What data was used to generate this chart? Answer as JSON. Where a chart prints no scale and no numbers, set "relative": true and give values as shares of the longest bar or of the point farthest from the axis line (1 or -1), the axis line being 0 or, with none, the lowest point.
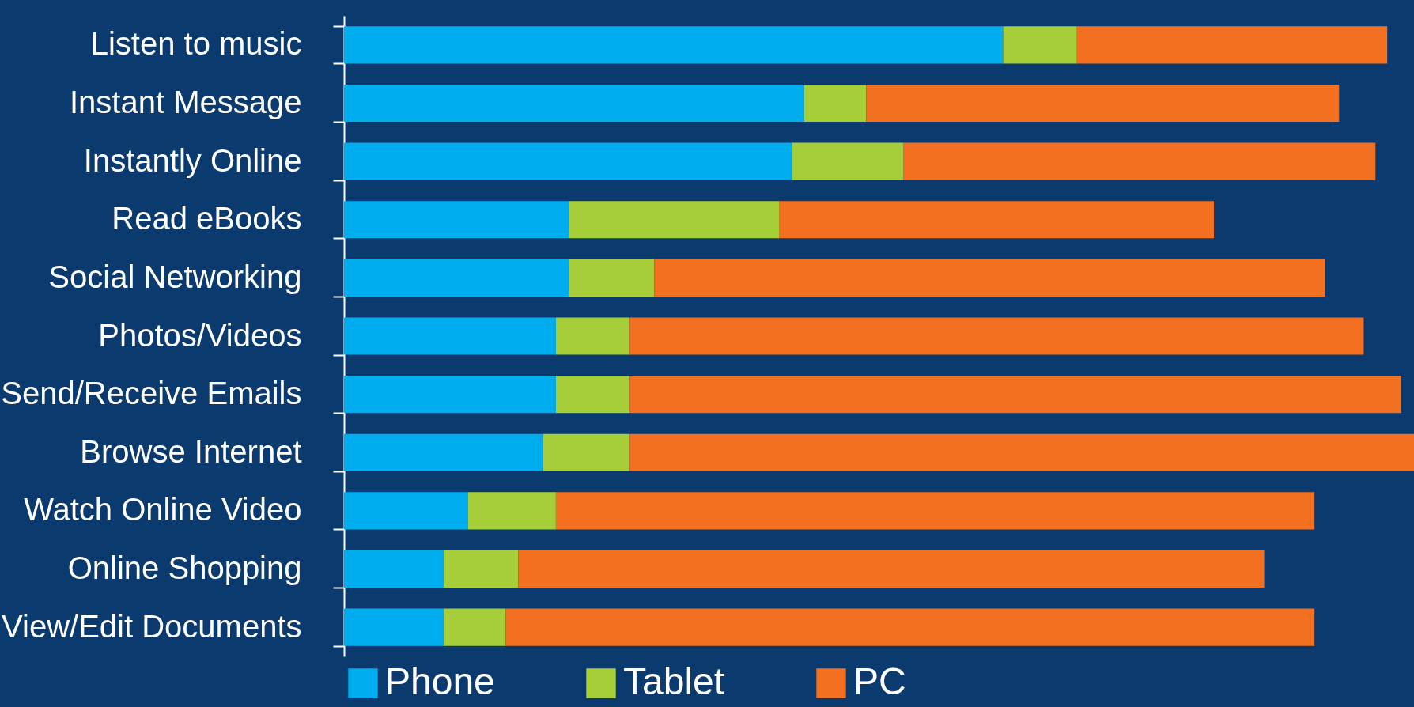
{
  "chart_data": {
    "type": "bar",
    "orientation": "horizontal",
    "stacked": true,
    "relative": true,
    "legend": "bottom",
    "categories": [
      "Listen to music",
      "Instant Message",
      "Instantly Online",
      "Read eBooks",
      "Social Networking",
      "Photos/Videos",
      "Send/Receive Emails",
      "Browse Internet",
      "Watch Online Video",
      "Online Shopping",
      "View/Edit Documents"
    ],
    "series": [
      {
        "name": "Phone",
        "color": "#00aeef",
        "values": [
          0.616,
          0.43,
          0.419,
          0.21,
          0.21,
          0.198,
          0.198,
          0.186,
          0.116,
          0.093,
          0.093
        ]
      },
      {
        "name": "Tablet",
        "color": "#a6ce39",
        "values": [
          0.069,
          0.058,
          0.104,
          0.197,
          0.08,
          0.069,
          0.069,
          0.081,
          0.082,
          0.07,
          0.058
        ]
      },
      {
        "name": "PC",
        "color": "#f37021",
        "values": [
          0.29,
          0.442,
          0.441,
          0.406,
          0.627,
          0.686,
          0.721,
          0.733,
          0.709,
          0.697,
          0.756
        ]
      }
    ]
  }
}
